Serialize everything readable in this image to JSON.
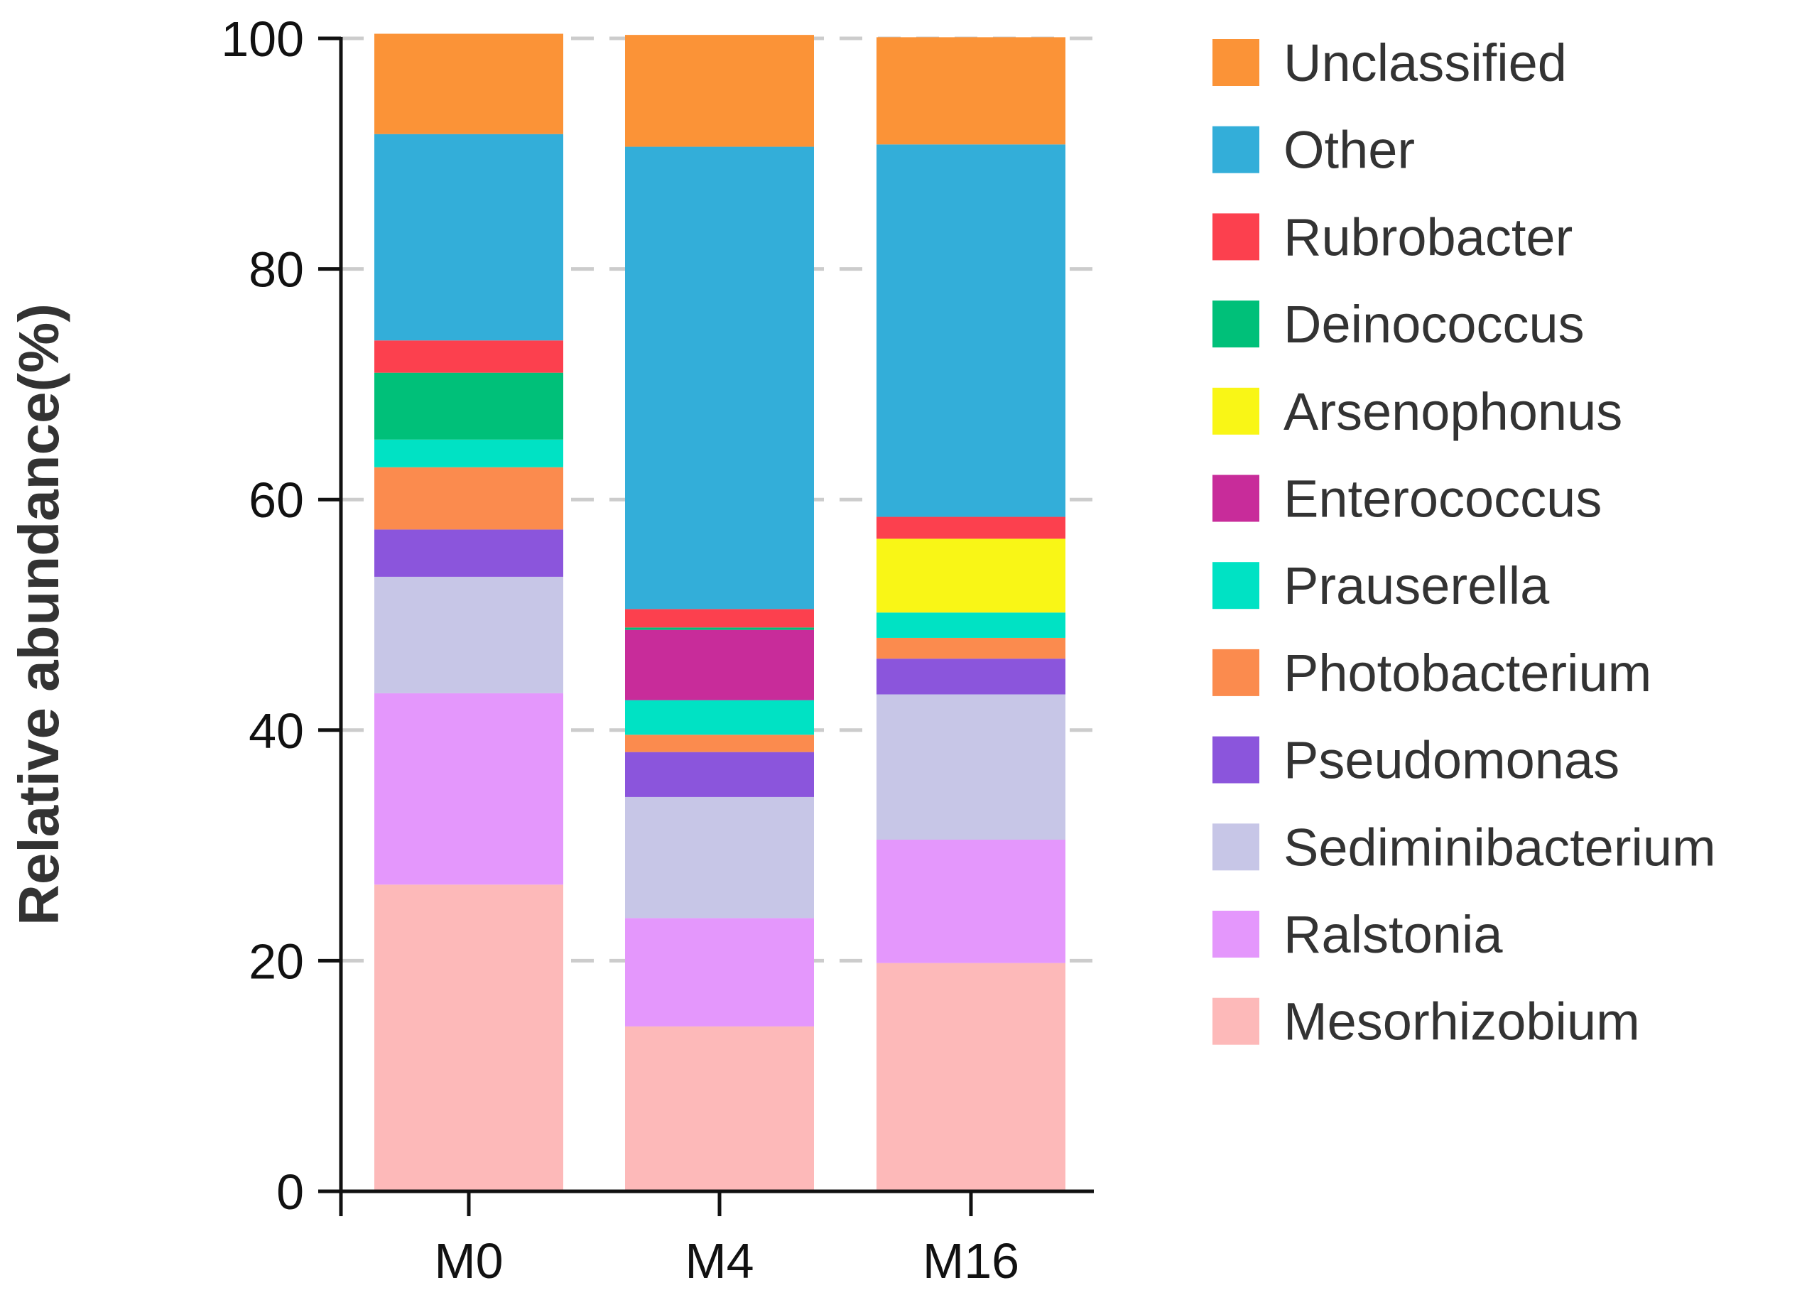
{
  "chart_data": {
    "type": "bar",
    "stacked": true,
    "ylabel": "Relative abundance(%)",
    "xlabel": "",
    "ylim": [
      0,
      100
    ],
    "yticks": [
      0,
      20,
      40,
      60,
      80,
      100
    ],
    "grid": "horizontal dashed",
    "legend_position": "right",
    "categories": [
      "M0",
      "M4",
      "M16"
    ],
    "series": [
      {
        "name": "Mesorhizobium",
        "color": "#FDB9B9",
        "values": [
          26.6,
          14.3,
          19.8
        ]
      },
      {
        "name": "Ralstonia",
        "color": "#E497FC",
        "values": [
          16.6,
          9.4,
          10.7
        ]
      },
      {
        "name": "Sediminibacterium",
        "color": "#C7C6E7",
        "values": [
          10.1,
          10.5,
          12.6
        ]
      },
      {
        "name": "Pseudomonas",
        "color": "#8B55DC",
        "values": [
          4.1,
          3.9,
          3.1
        ]
      },
      {
        "name": "Photobacterium",
        "color": "#FB8B4E",
        "values": [
          5.4,
          1.5,
          1.8
        ]
      },
      {
        "name": "Prauserella",
        "color": "#00E2C4",
        "values": [
          2.4,
          3.0,
          2.2
        ]
      },
      {
        "name": "Enterococcus",
        "color": "#C82C9A",
        "values": [
          0,
          6.1,
          0
        ]
      },
      {
        "name": "Arsenophonus",
        "color": "#F9F616",
        "values": [
          0,
          0,
          6.4
        ]
      },
      {
        "name": "Deinococcus",
        "color": "#00C079",
        "values": [
          5.8,
          0.2,
          0
        ]
      },
      {
        "name": "Rubrobacter",
        "color": "#FC404E",
        "values": [
          2.8,
          1.6,
          1.9
        ]
      },
      {
        "name": "Other",
        "color": "#33AED9",
        "values": [
          17.9,
          40.1,
          32.3
        ]
      },
      {
        "name": "Unclassified",
        "color": "#FB9337",
        "values": [
          8.7,
          9.7,
          9.3
        ]
      }
    ]
  }
}
